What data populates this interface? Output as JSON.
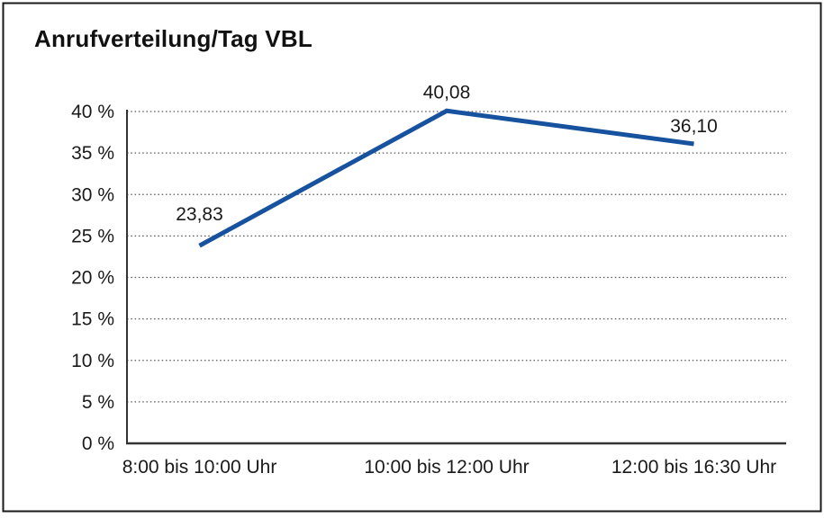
{
  "title": "Anrufverteilung/Tag VBL",
  "colors": {
    "line": "#17529e",
    "grid": "#555555",
    "axis": "#333333",
    "text": "#1a1a1a",
    "border": "#1a1a1a",
    "background": "#ffffff"
  },
  "chart_data": {
    "type": "line",
    "title": "Anrufverteilung/Tag VBL",
    "categories": [
      "8:00 bis 10:00 Uhr",
      "10:00 bis 12:00 Uhr",
      "12:00 bis 16:30 Uhr"
    ],
    "values": [
      23.83,
      40.08,
      36.1
    ],
    "data_labels": [
      "23,83",
      "40,08",
      "36,10"
    ],
    "y_tick_labels": [
      "0 %",
      "5 %",
      "10 %",
      "15 %",
      "20 %",
      "25 %",
      "30 %",
      "35 %",
      "40 %"
    ],
    "xlabel": "",
    "ylabel": "",
    "ylim": [
      0,
      40
    ],
    "y_step": 5,
    "grid": "horizontal-dotted",
    "legend": "none",
    "series_name": "Anrufverteilung/Tag VBL"
  }
}
